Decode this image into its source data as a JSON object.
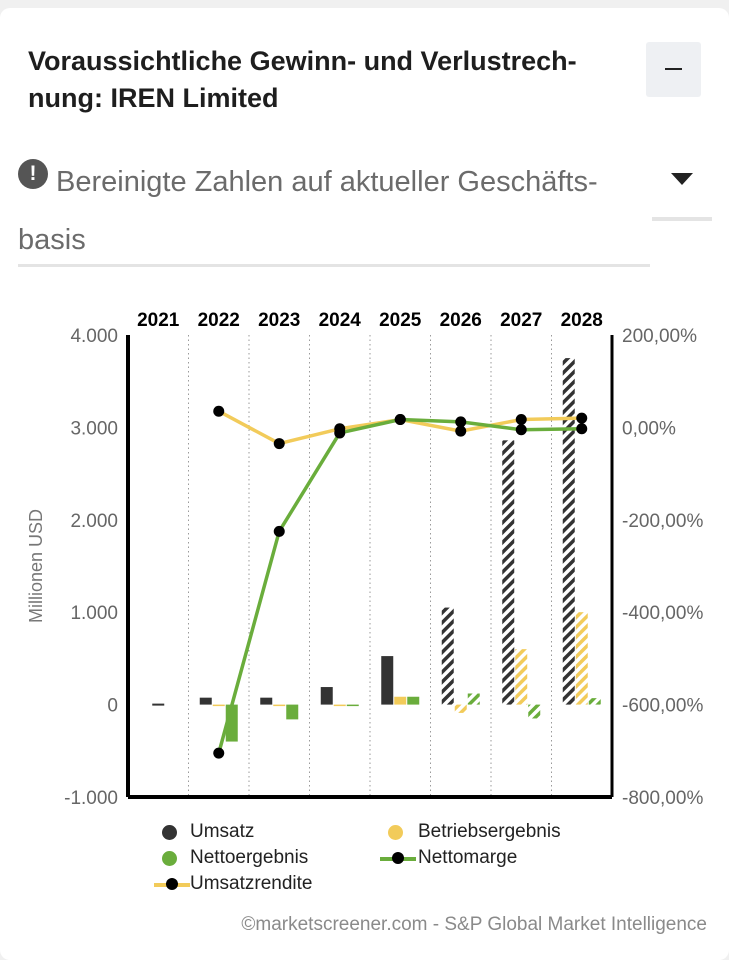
{
  "header": {
    "title": "Voraussichtliche Gewinn- und Verlustrech- nung: IREN Limited",
    "collapse_icon": "minus-icon"
  },
  "notice": {
    "icon": "exclamation-icon",
    "text": "Bereinigte Zahlen auf aktueller Geschäfts- basis",
    "dropdown_icon": "caret-down-icon"
  },
  "chart_data": {
    "type": "bar",
    "categories": [
      "2021",
      "2022",
      "2023",
      "2024",
      "2025",
      "2026",
      "2027",
      "2028"
    ],
    "estimate_from": "2026",
    "ylabel": "Millionen USD",
    "ylim": [
      -1000,
      4000
    ],
    "y_ticks": [
      "4.000",
      "3.000",
      "2.000",
      "1.000",
      "0",
      "-1.000"
    ],
    "y_tick_values": [
      4000,
      3000,
      2000,
      1000,
      0,
      -1000
    ],
    "y2lim": [
      -800,
      200
    ],
    "y2_ticks": [
      "200,00%",
      "0,00%",
      "-200,00%",
      "-400,00%",
      "-600,00%",
      "-800,00%"
    ],
    "y2_tick_values": [
      200,
      0,
      -200,
      -400,
      -600,
      -800
    ],
    "series": [
      {
        "name": "Umsatz",
        "kind": "bar",
        "color": "#333333",
        "values": [
          0,
          75,
          75,
          190,
          525,
          1050,
          2860,
          3750
        ]
      },
      {
        "name": "Betriebsergebnis",
        "kind": "bar",
        "color": "#f2cb5a",
        "values": [
          0,
          -5,
          -10,
          -10,
          85,
          -90,
          600,
          1000
        ]
      },
      {
        "name": "Nettoergebnis",
        "kind": "bar",
        "color": "#6aad3c",
        "values": [
          0,
          -400,
          -160,
          -15,
          85,
          120,
          -150,
          70
        ]
      },
      {
        "name": "Nettomarge",
        "kind": "line",
        "axis": "right",
        "color": "#6aad3c",
        "values": [
          null,
          -705,
          -225,
          -12,
          17,
          12,
          -5,
          -3
        ]
      },
      {
        "name": "Umsatzrendite",
        "kind": "line",
        "axis": "right",
        "color": "#f2cb5a",
        "values": [
          null,
          35,
          -35,
          -3,
          17,
          -8,
          17,
          20
        ]
      }
    ],
    "legend": [
      "Umsatz",
      "Betriebsergebnis",
      "Nettoergebnis",
      "Nettomarge",
      "Umsatzrendite"
    ]
  },
  "footer": {
    "credit": "©marketscreener.com - S&P Global Market Intelligence"
  }
}
